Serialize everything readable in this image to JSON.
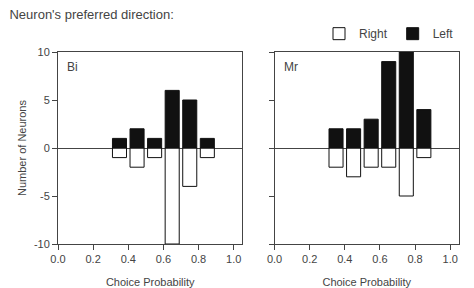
{
  "title": "Neuron's preferred direction:",
  "legend": "upper right",
  "chart_data": [
    {
      "type": "bar",
      "title": "Bi",
      "xlabel": "Choice Probability",
      "ylabel": "Number of Neurons",
      "x": [
        0.35,
        0.45,
        0.55,
        0.65,
        0.75,
        0.85
      ],
      "series": [
        {
          "name": "Right",
          "color": "#ffffff",
          "values": [
            -1,
            -2,
            -1,
            -10,
            -4,
            -1
          ]
        },
        {
          "name": "Left",
          "color": "#111111",
          "values": [
            1,
            2,
            1,
            6,
            5,
            1
          ]
        }
      ],
      "xlim": [
        0.0,
        1.05
      ],
      "ylim": [
        -10,
        10
      ],
      "xticks": [
        {
          "value": 0.0,
          "label": "0.0"
        },
        0.2,
        0.4,
        0.6,
        0.8,
        {
          "value": 1.0,
          "label": "1.0"
        }
      ],
      "yticks": [
        -10,
        -5,
        0,
        5,
        10
      ],
      "grid": false
    },
    {
      "type": "bar",
      "title": "Mr",
      "xlabel": "Choice Probability",
      "x": [
        0.35,
        0.45,
        0.55,
        0.65,
        0.75,
        0.85
      ],
      "series": [
        {
          "name": "Right",
          "color": "#ffffff",
          "values": [
            -2,
            -3,
            -2,
            -2,
            -5,
            -1
          ]
        },
        {
          "name": "Left",
          "color": "#111111",
          "values": [
            2,
            2,
            3,
            9,
            10,
            4
          ]
        }
      ],
      "xlim": [
        0.0,
        1.05
      ],
      "ylim": [
        -10,
        10
      ],
      "xticks": [
        {
          "value": 0.0,
          "label": "0.0"
        },
        0.2,
        0.4,
        0.6,
        0.8,
        {
          "value": 1.0,
          "label": "1.0"
        }
      ],
      "yticks": [
        -10,
        -5,
        0,
        5,
        10
      ],
      "grid": false,
      "tick_labels": "x"
    }
  ]
}
